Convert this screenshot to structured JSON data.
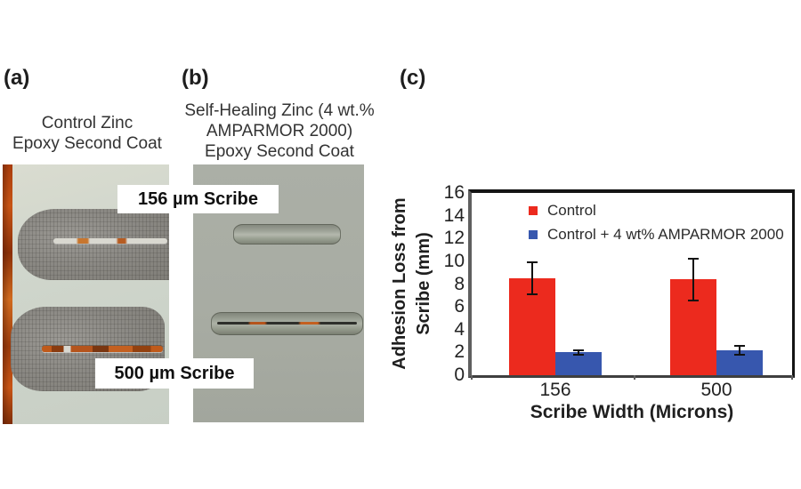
{
  "panels": {
    "a": {
      "label": "(a)",
      "caption_lines": [
        "Control Zinc",
        "Epoxy Second Coat"
      ]
    },
    "b": {
      "label": "(b)",
      "caption_lines": [
        "Self-Healing Zinc (4 wt.%",
        "AMPARMOR 2000)",
        "Epoxy Second Coat"
      ]
    },
    "c": {
      "label": "(c)"
    }
  },
  "scribe_labels": {
    "top": "156 µm Scribe",
    "bottom": "500 µm Scribe"
  },
  "chart_data": {
    "type": "bar",
    "title": "",
    "categories": [
      "156",
      "500"
    ],
    "series": [
      {
        "name": "Control",
        "color": "#ec2a1e",
        "values": [
          8.5,
          8.4
        ],
        "errors": [
          1.5,
          1.9
        ]
      },
      {
        "name": "Control + 4 wt% AMPARMOR 2000",
        "color": "#3757ae",
        "values": [
          2.0,
          2.2
        ],
        "errors": [
          0.3,
          0.45
        ]
      }
    ],
    "error_bars": true,
    "xlabel": "Scribe Width (Microns)",
    "ylabel": "Adhesion Loss from Scribe (mm)",
    "ylabel_lines": [
      "Adhesion Loss from",
      "Scribe (mm)"
    ],
    "ylim": [
      0,
      16
    ],
    "ytick_step": 2,
    "grid": false,
    "legend_position": "inside-top-left"
  },
  "photo_colors": {
    "panel_a_background": "#cdd3c9",
    "panel_a_rust_edge": "#b3450f",
    "panel_a_delamination": "#8b8984",
    "panel_b_background": "#a9ada4",
    "scribe_rust": "#c05a1a"
  }
}
